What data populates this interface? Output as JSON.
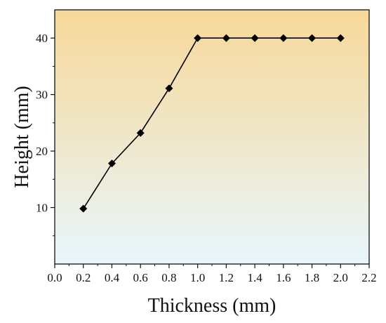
{
  "chart_data": {
    "type": "line",
    "title": "",
    "xlabel": "Thickness (mm)",
    "ylabel": "Height (mm)",
    "xlim": [
      0.0,
      2.2
    ],
    "ylim": [
      0,
      45
    ],
    "x_ticks": [
      "0.0",
      "0.2",
      "0.4",
      "0.6",
      "0.8",
      "1.0",
      "1.2",
      "1.4",
      "1.6",
      "1.8",
      "2.0",
      "2.2"
    ],
    "y_ticks": [
      "10",
      "20",
      "30",
      "40"
    ],
    "grid": false,
    "legend": "none",
    "series": [
      {
        "marker": "diamond",
        "color": "#000000",
        "x": [
          0.2,
          0.4,
          0.6,
          0.8,
          1.0,
          1.2,
          1.4,
          1.6,
          1.8,
          2.0
        ],
        "y": [
          9.8,
          17.8,
          23.2,
          31.1,
          40,
          40,
          40,
          40,
          40,
          40
        ]
      }
    ],
    "background_gradient": {
      "top": "#f7d898",
      "bottom": "#e8f6fc"
    }
  }
}
